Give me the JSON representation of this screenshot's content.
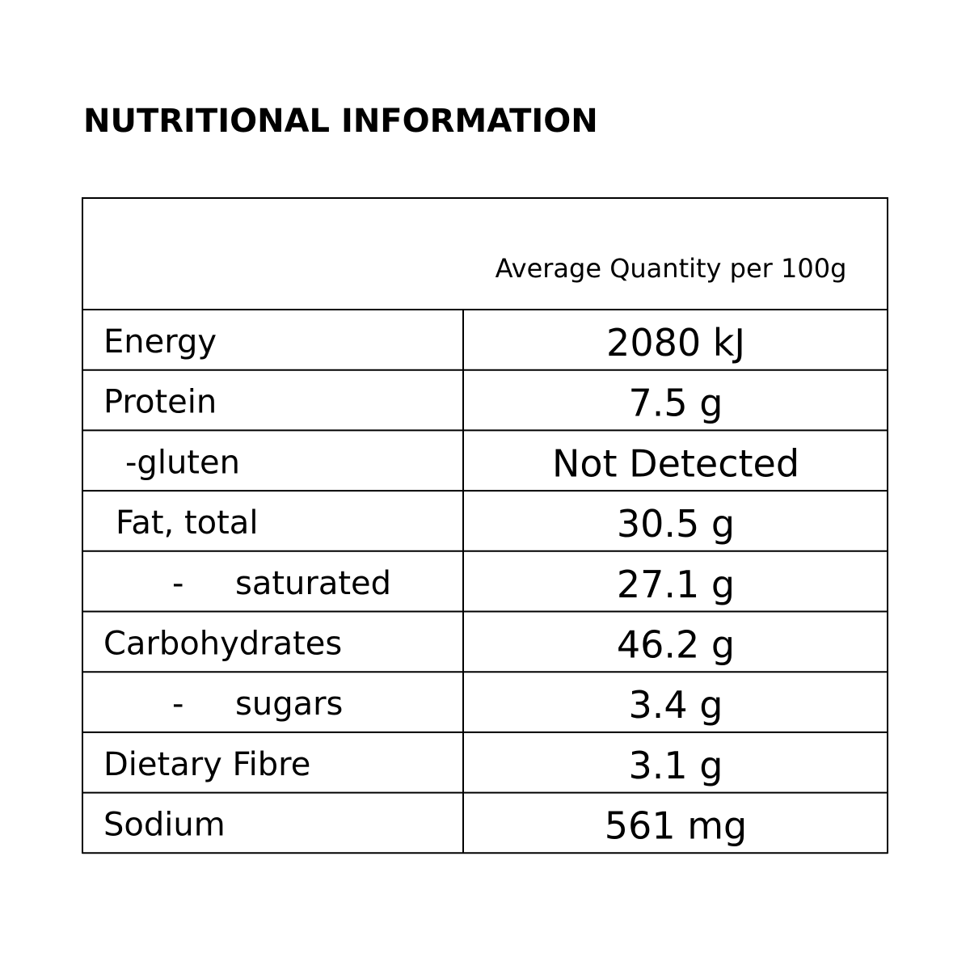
{
  "header": {
    "title": "NUTRITIONAL INFORMATION"
  },
  "table": {
    "column_header": "Average Quantity per 100g",
    "rows": [
      {
        "label": "Energy",
        "value": "2080 kJ"
      },
      {
        "label": "Protein",
        "value": "7.5 g"
      },
      {
        "label": "-gluten",
        "value": "Not Detected"
      },
      {
        "label": "Fat, total",
        "value": "30.5 g"
      },
      {
        "prefix": "-",
        "label": "saturated",
        "value": "27.1 g"
      },
      {
        "label": "Carbohydrates",
        "value": "46.2 g"
      },
      {
        "prefix": "-",
        "label": "sugars",
        "value": "3.4 g"
      },
      {
        "label": "Dietary Fibre",
        "value": "3.1 g"
      },
      {
        "label": "Sodium",
        "value": "561 mg"
      }
    ]
  }
}
